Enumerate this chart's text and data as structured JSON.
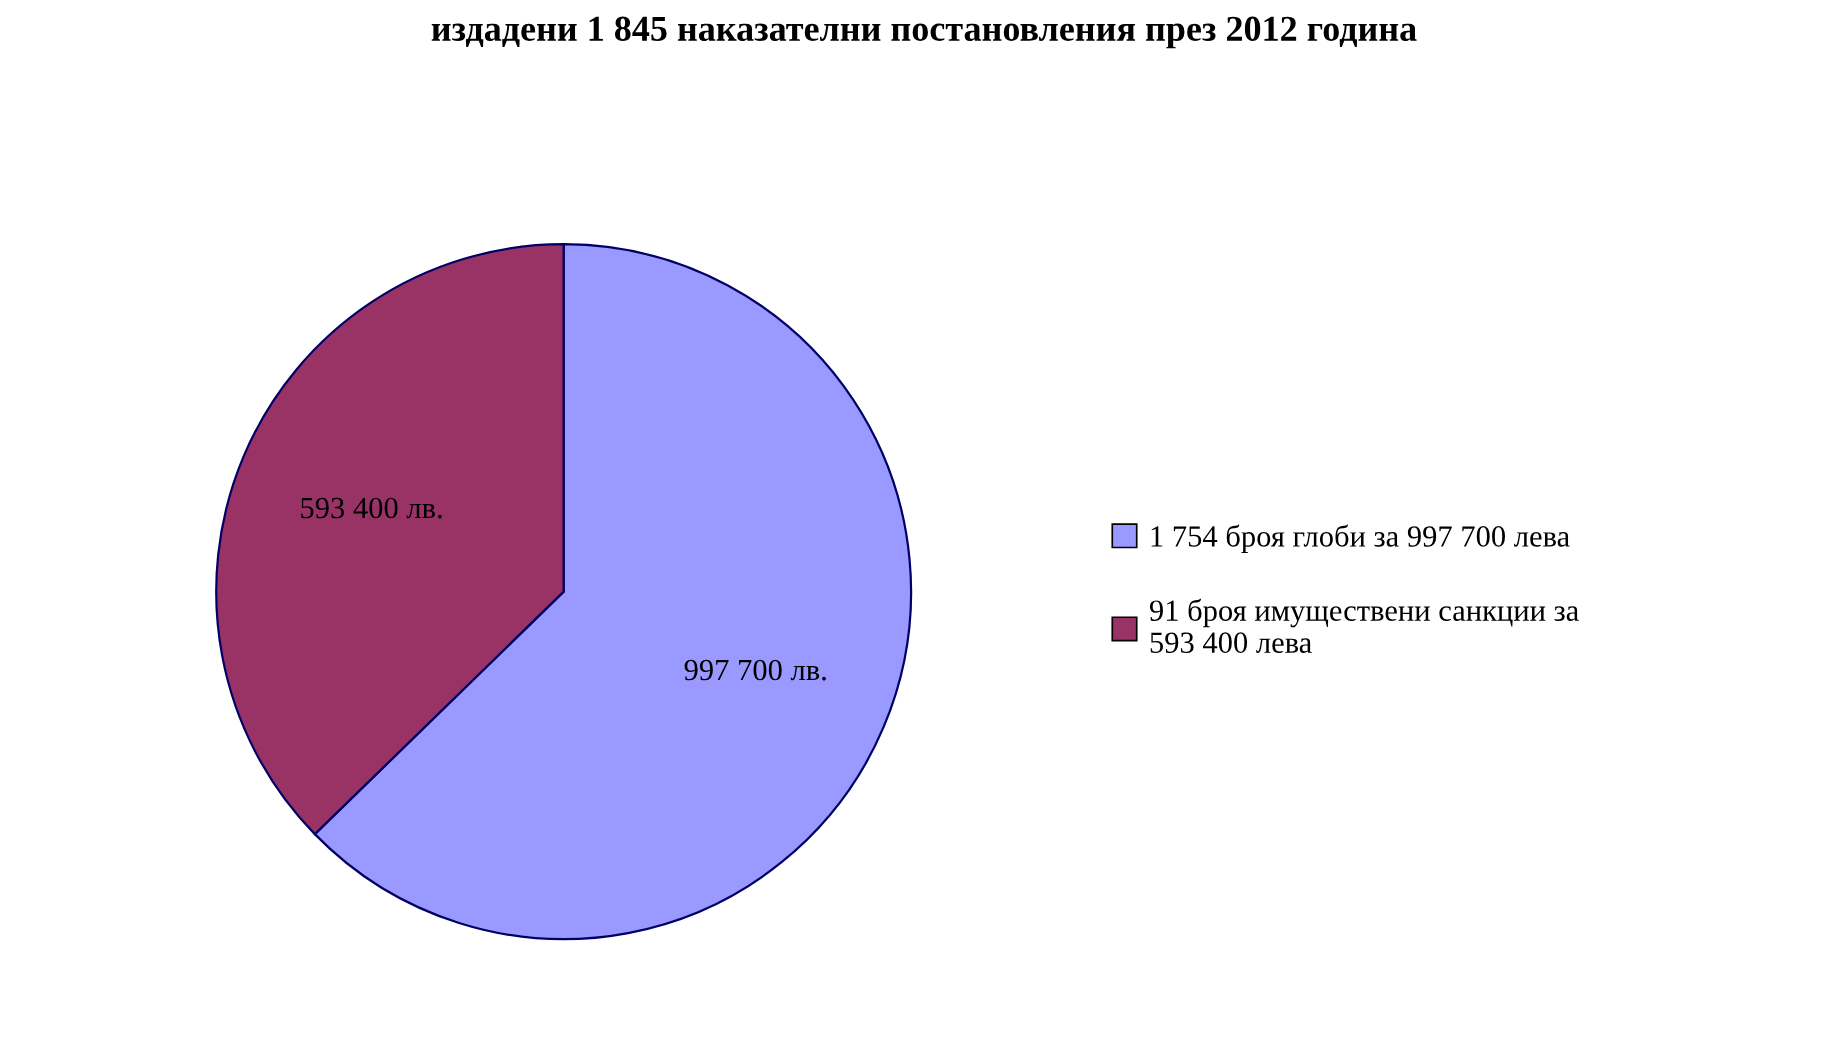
{
  "chart_data": {
    "type": "pie",
    "title": "издадени 1 845 наказателни постановления през 2012 година",
    "categories": [
      "1 754 броя глоби за 997 700 лева",
      "91 броя имуществени санкции за\n593 400 лева"
    ],
    "values": [
      997700,
      593400
    ],
    "colors": [
      "#9999ff",
      "#993366"
    ],
    "value_labels": [
      "997 700 лв.",
      "593 400 лв."
    ],
    "legend": "right"
  }
}
